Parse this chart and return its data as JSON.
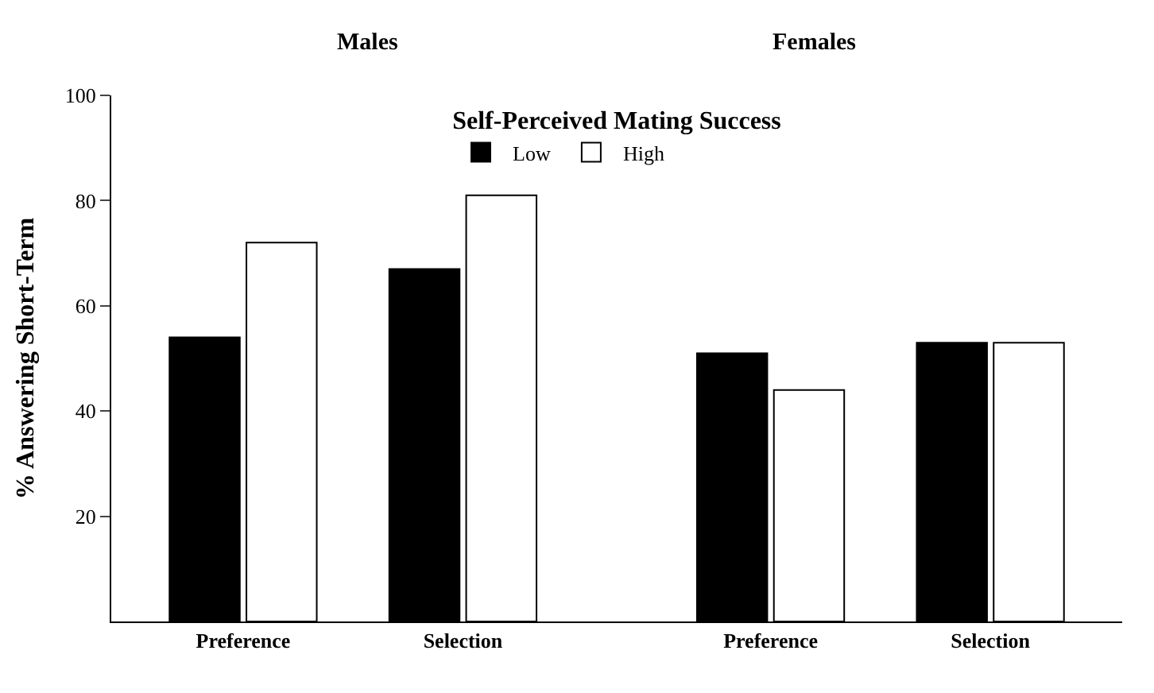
{
  "chart_data": {
    "type": "bar",
    "ylabel": "% Answering Short-Term",
    "legend_title": "Self-Perceived Mating Success",
    "categories": [
      "Preference",
      "Selection",
      "Preference",
      "Selection"
    ],
    "series": [
      {
        "name": "Low",
        "color": "#000000",
        "values": [
          54,
          67,
          51,
          53
        ]
      },
      {
        "name": "High",
        "color": "#ffffff",
        "values": [
          72,
          81,
          44,
          53
        ]
      }
    ],
    "annotations": [
      "Males",
      "Females"
    ],
    "ylim": [
      0,
      100
    ],
    "yticks": [
      20,
      40,
      60,
      80,
      100
    ],
    "legend": "top"
  }
}
